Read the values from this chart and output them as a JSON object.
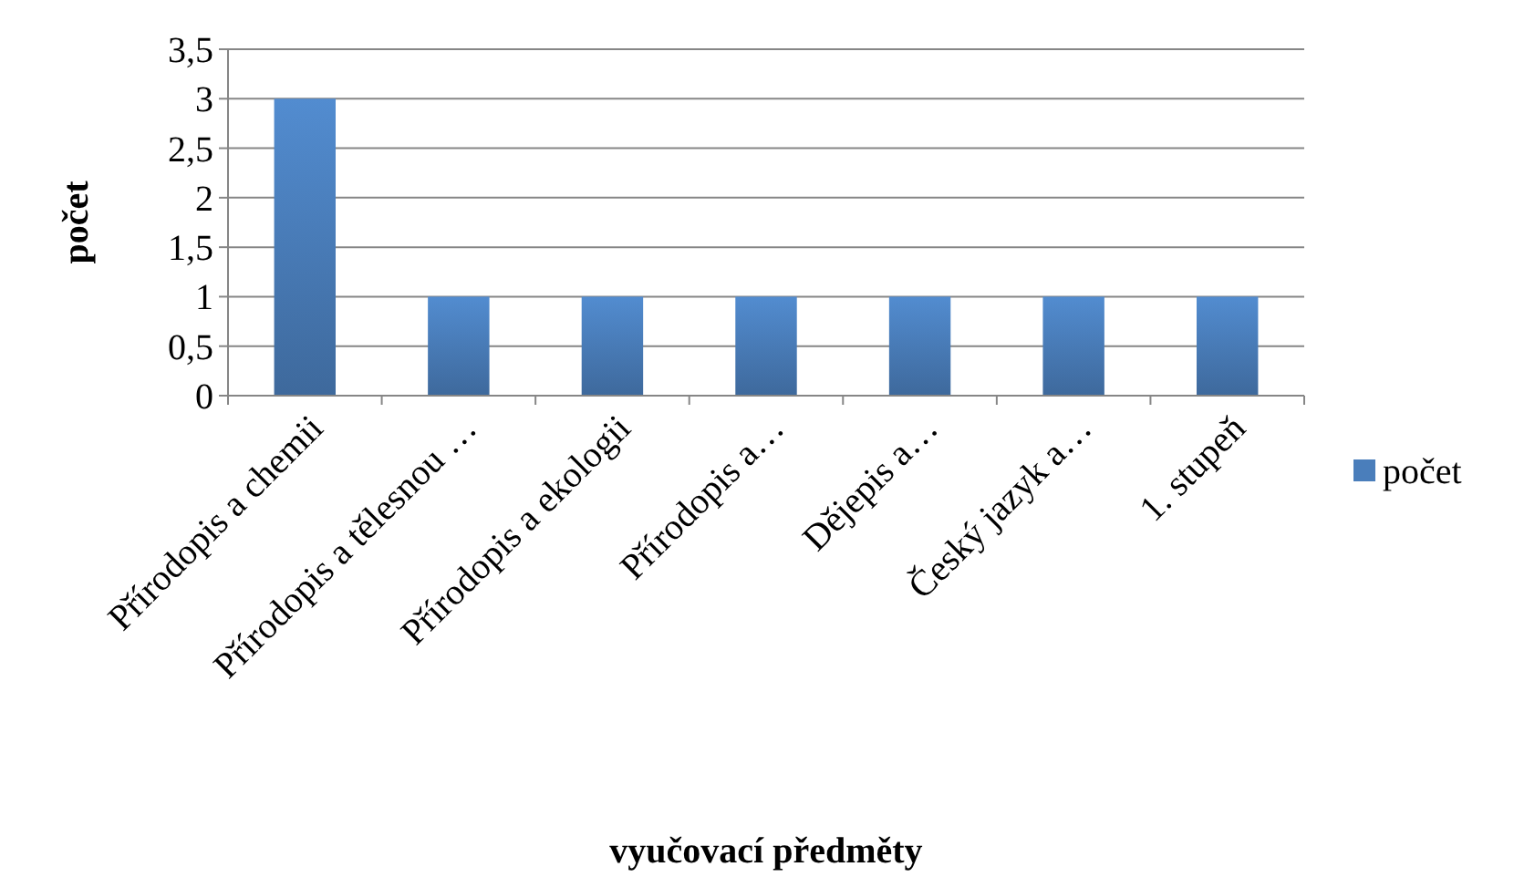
{
  "chart_data": {
    "type": "bar",
    "xlabel": "vyučovací předměty",
    "ylabel": "počet",
    "categories": [
      "Přírodopis a chemii",
      "Přírodopis a tělesnou …",
      "Přírodopis a ekologii",
      "Přírodopis a…",
      "Dějepis a…",
      "Český jazyk a…",
      "1. stupeň"
    ],
    "series": [
      {
        "name": "počet",
        "color": "#4a7ebb",
        "values": [
          3,
          1,
          1,
          1,
          1,
          1,
          1
        ]
      }
    ],
    "ylim": [
      0,
      3.5
    ],
    "yticks": [
      0,
      {
        "value": 0.5,
        "label": "0,5"
      },
      1,
      {
        "value": 1.5,
        "label": "1,5"
      },
      2,
      {
        "value": 2.5,
        "label": "2,5"
      },
      3,
      {
        "value": 3.5,
        "label": "3,5"
      }
    ],
    "grid": "y",
    "legend": "right"
  }
}
